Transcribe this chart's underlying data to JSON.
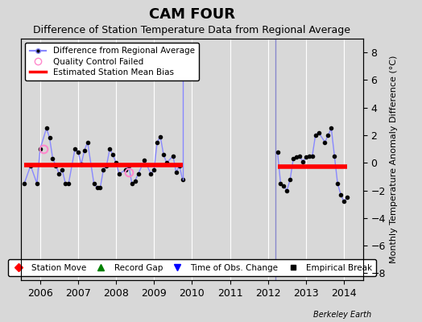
{
  "title": "CAM FOUR",
  "subtitle": "Difference of Station Temperature Data from Regional Average",
  "ylabel": "Monthly Temperature Anomaly Difference (°C)",
  "xlim": [
    2005.5,
    2014.5
  ],
  "ylim": [
    -8.5,
    9.0
  ],
  "yticks": [
    -8,
    -6,
    -4,
    -2,
    0,
    2,
    4,
    6,
    8
  ],
  "xticks": [
    2006,
    2007,
    2008,
    2009,
    2010,
    2011,
    2012,
    2013,
    2014
  ],
  "background_color": "#d8d8d8",
  "plot_bg_color": "#d8d8d8",
  "grid_color": "white",
  "main_line_color": "#8888ff",
  "main_marker_color": "black",
  "bias_line_color": "red",
  "vline_color": "#8888cc",
  "record_gap_color": "green",
  "segment1_x": [
    2005.583,
    2005.75,
    2005.917,
    2006.0,
    2006.167,
    2006.25,
    2006.333,
    2006.417,
    2006.5,
    2006.583,
    2006.667,
    2006.75,
    2006.917,
    2007.0,
    2007.083,
    2007.167,
    2007.25,
    2007.417,
    2007.5,
    2007.583,
    2007.667,
    2007.75,
    2007.833,
    2007.917,
    2008.0,
    2008.083,
    2008.25,
    2008.333,
    2008.417,
    2008.5,
    2008.583,
    2008.75,
    2008.917,
    2009.0,
    2009.083,
    2009.167,
    2009.25,
    2009.333,
    2009.5,
    2009.583,
    2009.667,
    2009.75
  ],
  "segment1_y": [
    -1.5,
    -0.2,
    -1.5,
    1.0,
    2.5,
    1.8,
    0.3,
    -0.2,
    -0.8,
    -0.5,
    -1.5,
    -1.5,
    1.0,
    0.8,
    -0.1,
    0.9,
    1.5,
    -1.5,
    -1.8,
    -1.8,
    -0.5,
    -0.2,
    1.0,
    0.6,
    0.0,
    -0.8,
    -0.5,
    -0.2,
    -1.5,
    -1.3,
    -0.8,
    0.2,
    -0.8,
    -0.5,
    1.5,
    1.9,
    0.6,
    0.0,
    0.5,
    -0.7,
    -0.2,
    -1.2
  ],
  "qc_fail_x1": 2006.083,
  "qc_fail_y1": 1.0,
  "qc_fail_x2": 2008.333,
  "qc_fail_y2": -0.7,
  "spike_top_x": 2009.75,
  "spike_top_y": 6.3,
  "spike_bottom_y": -1.2,
  "segment1_bias_y": -0.15,
  "segment1_bias_x0": 2005.583,
  "segment1_bias_x1": 2009.75,
  "segment2_x": [
    2012.25,
    2012.333,
    2012.417,
    2012.5,
    2012.583,
    2012.667,
    2012.75,
    2012.833,
    2012.917,
    2013.0,
    2013.083,
    2013.167,
    2013.25,
    2013.333,
    2013.5,
    2013.583,
    2013.667,
    2013.75,
    2013.833,
    2013.917,
    2014.0,
    2014.083
  ],
  "segment2_y": [
    0.8,
    -1.5,
    -1.7,
    -2.0,
    -1.2,
    0.3,
    0.4,
    0.5,
    0.1,
    0.4,
    0.5,
    0.5,
    2.0,
    2.2,
    1.5,
    2.0,
    2.5,
    0.5,
    -1.5,
    -2.3,
    -2.8,
    -2.5
  ],
  "segment2_bias_y": -0.3,
  "segment2_bias_x0": 2012.25,
  "segment2_bias_x1": 2014.083,
  "vline_x": 2012.2,
  "record_gap_x": 2012.0,
  "record_gap_y": -7.5,
  "berkeley_earth_text": "Berkeley Earth",
  "title_fontsize": 13,
  "subtitle_fontsize": 9,
  "tick_fontsize": 9,
  "ylabel_fontsize": 8
}
